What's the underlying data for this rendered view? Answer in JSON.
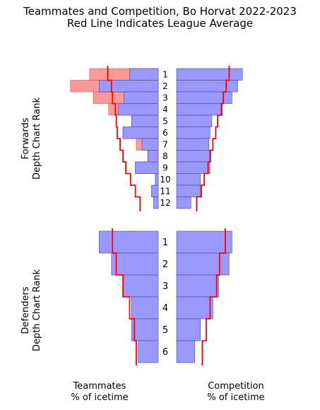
{
  "title": {
    "line1": "Teammates and Competition, Bo Horvat 2022-2023",
    "line2": "Red Line Indicates League Average"
  },
  "labels": {
    "forwards_line1": "Forwards",
    "forwards_line2": "Depth Chart Rank",
    "defenders_line1": "Defenders",
    "defenders_line2": "Depth Chart Rank",
    "teammates_line1": "Teammates",
    "teammates_line2": "% of icetime",
    "competition_line1": "Competition",
    "competition_line2": "% of icetime"
  },
  "colors": {
    "bar": "#9999ff",
    "bar_edge": "#4a4a8a",
    "excess": "#ff9999",
    "average_line": "#ff0000"
  },
  "chart_data": {
    "type": "bar",
    "orientation": "horizontal",
    "note_scale": "bar values are relative share of icetime on a 0-1 scale; no axis ticks are printed",
    "forwards": {
      "ranks": [
        "1",
        "2",
        "3",
        "4",
        "5",
        "6",
        "7",
        "8",
        "9",
        "10",
        "11",
        "12"
      ],
      "teammates": [
        0.3,
        0.62,
        0.36,
        0.42,
        0.28,
        0.37,
        0.17,
        0.11,
        0.24,
        0.03,
        0.07,
        0.05
      ],
      "teammates_excess": [
        0.72,
        0.92,
        0.68,
        0.52,
        0.28,
        0.37,
        0.23,
        0.11,
        0.24,
        0.03,
        0.07,
        0.05
      ],
      "teammates_average": [
        0.53,
        0.49,
        0.48,
        0.45,
        0.44,
        0.43,
        0.4,
        0.37,
        0.34,
        0.29,
        0.24,
        0.19
      ],
      "competition": [
        0.69,
        0.64,
        0.58,
        0.48,
        0.37,
        0.35,
        0.34,
        0.36,
        0.35,
        0.25,
        0.25,
        0.15
      ],
      "competition_average": [
        0.55,
        0.52,
        0.49,
        0.47,
        0.43,
        0.41,
        0.38,
        0.35,
        0.33,
        0.29,
        0.26,
        0.21
      ]
    },
    "defenders": {
      "ranks": [
        "1",
        "2",
        "3",
        "4",
        "5",
        "6"
      ],
      "teammates": [
        0.62,
        0.49,
        0.37,
        0.28,
        0.28,
        0.21
      ],
      "teammates_average": [
        0.48,
        0.44,
        0.37,
        0.3,
        0.25,
        0.23
      ],
      "competition": [
        0.58,
        0.55,
        0.44,
        0.38,
        0.25,
        0.19
      ],
      "competition_average": [
        0.51,
        0.45,
        0.42,
        0.35,
        0.31,
        0.27
      ]
    }
  }
}
